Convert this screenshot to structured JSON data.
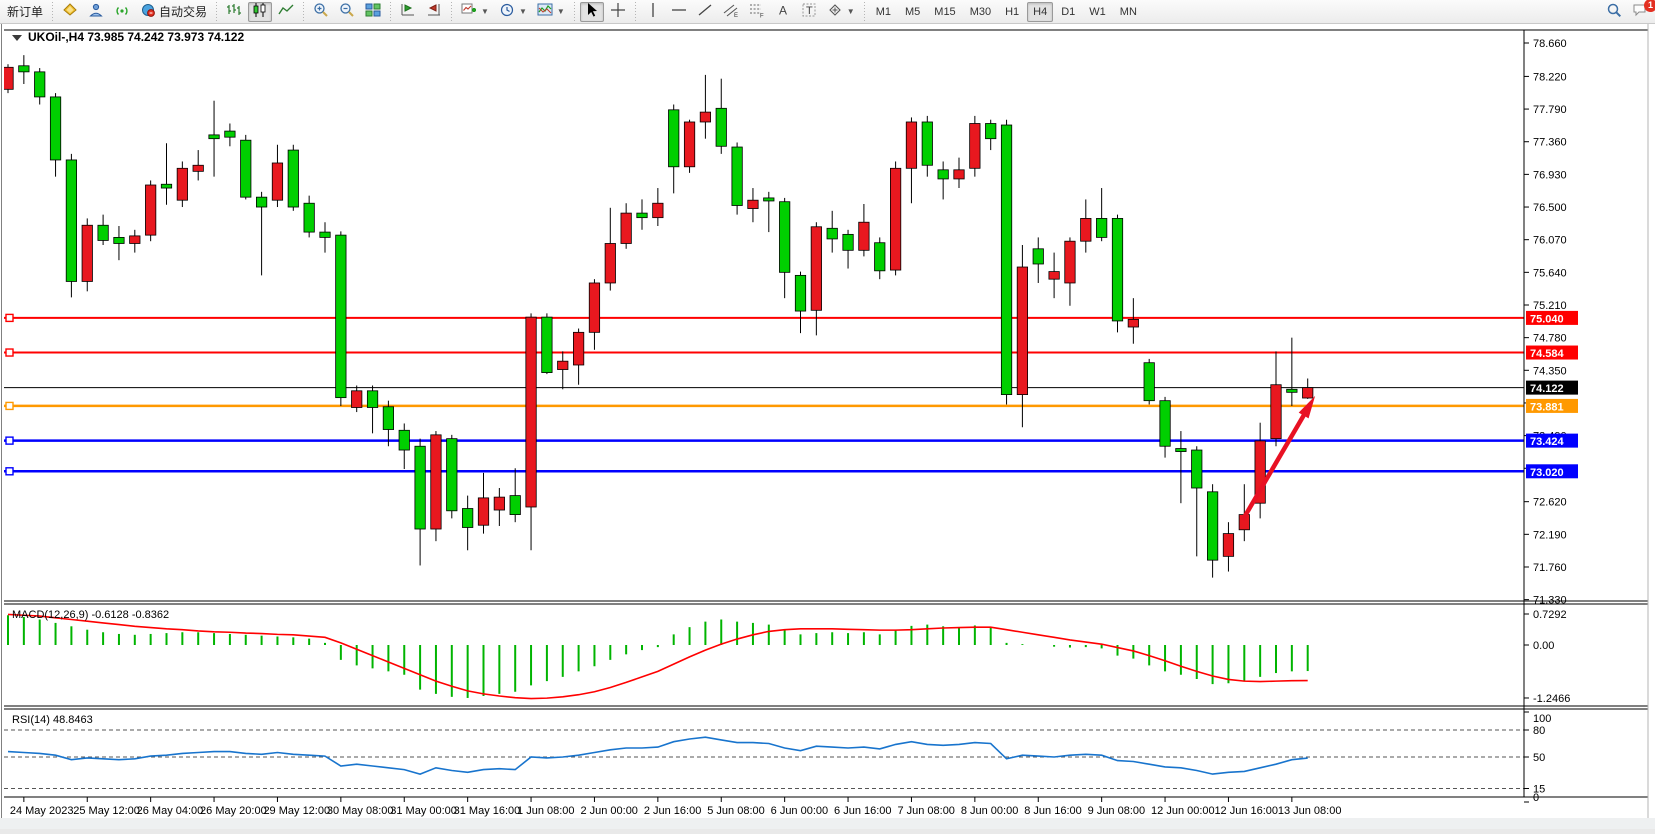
{
  "toolbar": {
    "new_order_label": "新订单",
    "autotrading_label": "自动交易",
    "items": [
      {
        "name": "new-order-button",
        "icon": null,
        "label_key": "new_order_label"
      },
      {
        "sep": true
      },
      {
        "name": "funds-button",
        "icon": "coin"
      },
      {
        "name": "profile-button",
        "icon": "person"
      },
      {
        "name": "signal-button",
        "icon": "signal"
      },
      {
        "name": "autotrading-button",
        "icon": "robot",
        "label_key": "autotrading_label"
      },
      {
        "sep": true
      },
      {
        "name": "bar-chart-button",
        "icon": "bars"
      },
      {
        "name": "candlestick-button",
        "icon": "candles",
        "active": true
      },
      {
        "name": "line-chart-button",
        "icon": "linechart"
      },
      {
        "sep": true
      },
      {
        "name": "zoom-in-button",
        "icon": "zoomin"
      },
      {
        "name": "zoom-out-button",
        "icon": "zoomout"
      },
      {
        "name": "tile-windows-button",
        "icon": "tiles"
      },
      {
        "sep": true
      },
      {
        "name": "auto-scroll-button",
        "icon": "autoscroll"
      },
      {
        "name": "chart-shift-button",
        "icon": "chartshift"
      },
      {
        "sep": true
      },
      {
        "name": "new-chart-button",
        "icon": "newchart",
        "dropdown": true
      },
      {
        "name": "periods-button",
        "icon": "clock",
        "dropdown": true
      },
      {
        "name": "indicators-button",
        "icon": "indicator",
        "dropdown": true
      },
      {
        "sep": true
      },
      {
        "name": "cursor-button",
        "icon": "cursor",
        "active": true
      },
      {
        "name": "crosshair-button",
        "icon": "crosshair"
      },
      {
        "sep": true
      },
      {
        "name": "vertical-line-button",
        "icon": "vline"
      },
      {
        "name": "horizontal-line-button",
        "icon": "hline"
      },
      {
        "name": "trendline-button",
        "icon": "trendline"
      },
      {
        "name": "channel-button",
        "icon": "channel"
      },
      {
        "name": "fibonacci-button",
        "icon": "fibo"
      },
      {
        "name": "text-button",
        "icon": "textA"
      },
      {
        "name": "label-button",
        "icon": "textT"
      },
      {
        "name": "shapes-button",
        "icon": "shapes",
        "dropdown": true
      }
    ],
    "icon_glyphs": {
      "textA": "A",
      "textT": "T",
      "fiboF": "F",
      "channelE": "E"
    },
    "timeframes": [
      "M1",
      "M5",
      "M15",
      "M30",
      "H1",
      "H4",
      "D1",
      "W1",
      "MN"
    ],
    "active_timeframe": "H4",
    "search_icon": "magnifier",
    "notification_icon": "chat-bubble",
    "notification_badge": "1"
  },
  "chart": {
    "symbol_title": "UKOil-,H4",
    "ohlc_text": "73.985 74.242 73.973 74.122"
  },
  "chart_data": [
    {
      "type": "candlestick",
      "title": "UKOil-,H4",
      "open": 73.985,
      "high": 74.242,
      "low": 73.973,
      "close": 74.122,
      "ylim": [
        71.33,
        78.66
      ],
      "grid": false,
      "up_color": "#e8181f",
      "down_color": "#00cf00",
      "price_ticks": [
        "78.660",
        "78.220",
        "77.790",
        "77.360",
        "76.930",
        "76.500",
        "76.070",
        "75.640",
        "75.210",
        "74.780",
        "74.350",
        "73.920",
        "73.490",
        "73.060",
        "72.620",
        "72.190",
        "71.760",
        "71.330"
      ],
      "time_labels": [
        "24 May 2023",
        "25 May 12:00",
        "26 May 04:00",
        "26 May 20:00",
        "29 May 12:00",
        "30 May 08:00",
        "31 May 00:00",
        "31 May 16:00",
        "1 Jun 08:00",
        "2 Jun 00:00",
        "2 Jun 16:00",
        "5 Jun 08:00",
        "6 Jun 00:00",
        "6 Jun 16:00",
        "7 Jun 08:00",
        "8 Jun 00:00",
        "8 Jun 16:00",
        "9 Jun 08:00",
        "12 Jun 00:00",
        "12 Jun 16:00",
        "13 Jun 08:00"
      ],
      "candles": [
        [
          78.05,
          78.38,
          78.0,
          78.34
        ],
        [
          78.36,
          78.5,
          78.12,
          78.28
        ],
        [
          78.28,
          78.33,
          77.85,
          77.95
        ],
        [
          77.95,
          78.0,
          76.9,
          77.12
        ],
        [
          77.12,
          77.2,
          75.31,
          75.52
        ],
        [
          75.52,
          76.35,
          75.39,
          76.26
        ],
        [
          76.26,
          76.4,
          76.0,
          76.06
        ],
        [
          76.1,
          76.25,
          75.8,
          76.02
        ],
        [
          76.02,
          76.2,
          75.9,
          76.12
        ],
        [
          76.13,
          76.85,
          76.05,
          76.79
        ],
        [
          76.8,
          77.34,
          76.53,
          76.75
        ],
        [
          76.59,
          77.1,
          76.5,
          77.01
        ],
        [
          76.97,
          77.25,
          76.85,
          77.05
        ],
        [
          77.45,
          77.9,
          76.9,
          77.4
        ],
        [
          77.5,
          77.6,
          77.3,
          77.42
        ],
        [
          77.38,
          77.45,
          76.6,
          76.63
        ],
        [
          76.63,
          76.7,
          75.6,
          76.5
        ],
        [
          76.59,
          77.32,
          76.5,
          77.08
        ],
        [
          77.25,
          77.32,
          76.45,
          76.5
        ],
        [
          76.55,
          76.65,
          76.1,
          76.17
        ],
        [
          76.17,
          76.3,
          75.9,
          76.1
        ],
        [
          76.13,
          76.18,
          73.88,
          73.99
        ],
        [
          73.86,
          74.15,
          73.8,
          74.08
        ],
        [
          74.08,
          74.15,
          73.52,
          73.86
        ],
        [
          73.87,
          73.95,
          73.35,
          73.57
        ],
        [
          73.56,
          73.65,
          73.05,
          73.3
        ],
        [
          73.35,
          73.45,
          71.78,
          72.26
        ],
        [
          72.26,
          73.55,
          72.1,
          73.5
        ],
        [
          73.45,
          73.5,
          72.4,
          72.5
        ],
        [
          72.53,
          72.7,
          71.98,
          72.28
        ],
        [
          72.31,
          73.0,
          72.2,
          72.67
        ],
        [
          72.51,
          72.8,
          72.3,
          72.68
        ],
        [
          72.7,
          73.06,
          72.35,
          72.45
        ],
        [
          72.55,
          75.1,
          71.98,
          75.05
        ],
        [
          75.05,
          75.1,
          74.3,
          74.32
        ],
        [
          74.36,
          74.6,
          74.1,
          74.47
        ],
        [
          74.42,
          74.9,
          74.16,
          74.85
        ],
        [
          74.85,
          75.55,
          74.62,
          75.5
        ],
        [
          75.5,
          76.49,
          75.4,
          76.02
        ],
        [
          76.02,
          76.55,
          75.95,
          76.42
        ],
        [
          76.42,
          76.6,
          76.2,
          76.36
        ],
        [
          76.36,
          76.75,
          76.25,
          76.55
        ],
        [
          77.78,
          77.85,
          76.68,
          77.03
        ],
        [
          77.03,
          77.65,
          76.95,
          77.62
        ],
        [
          77.62,
          78.24,
          77.4,
          77.75
        ],
        [
          77.8,
          78.19,
          77.2,
          77.3
        ],
        [
          77.29,
          77.35,
          76.4,
          76.52
        ],
        [
          76.48,
          76.75,
          76.3,
          76.59
        ],
        [
          76.62,
          76.7,
          76.17,
          76.58
        ],
        [
          76.57,
          76.62,
          75.3,
          75.64
        ],
        [
          75.6,
          75.65,
          74.84,
          75.13
        ],
        [
          75.14,
          76.3,
          74.81,
          76.24
        ],
        [
          76.22,
          76.45,
          75.9,
          76.08
        ],
        [
          76.14,
          76.2,
          75.69,
          75.93
        ],
        [
          75.93,
          76.54,
          75.85,
          76.3
        ],
        [
          76.03,
          76.1,
          75.55,
          75.66
        ],
        [
          75.67,
          77.1,
          75.6,
          77.01
        ],
        [
          77.01,
          77.68,
          76.55,
          77.62
        ],
        [
          77.62,
          77.7,
          76.9,
          77.05
        ],
        [
          76.99,
          77.1,
          76.6,
          76.87
        ],
        [
          76.87,
          77.15,
          76.75,
          76.99
        ],
        [
          77.01,
          77.7,
          76.9,
          77.6
        ],
        [
          77.6,
          77.65,
          77.25,
          77.4
        ],
        [
          77.58,
          77.65,
          73.9,
          74.03
        ],
        [
          74.03,
          76.0,
          73.6,
          75.71
        ],
        [
          75.95,
          76.1,
          75.5,
          75.75
        ],
        [
          75.55,
          75.9,
          75.3,
          75.65
        ],
        [
          75.5,
          76.1,
          75.2,
          76.05
        ],
        [
          76.05,
          76.6,
          75.9,
          76.35
        ],
        [
          76.35,
          76.75,
          76.05,
          76.1
        ],
        [
          76.35,
          76.4,
          74.85,
          75.0
        ],
        [
          74.92,
          75.3,
          74.7,
          75.02
        ],
        [
          74.45,
          74.5,
          73.9,
          73.95
        ],
        [
          73.95,
          74.0,
          73.2,
          73.35
        ],
        [
          73.32,
          73.55,
          72.6,
          73.28
        ],
        [
          73.3,
          73.35,
          71.9,
          72.8
        ],
        [
          72.75,
          72.85,
          71.62,
          71.85
        ],
        [
          71.9,
          72.35,
          71.7,
          72.2
        ],
        [
          72.25,
          72.85,
          72.1,
          72.45
        ],
        [
          72.6,
          73.66,
          72.4,
          73.42
        ],
        [
          73.45,
          74.6,
          73.35,
          74.16
        ],
        [
          74.1,
          74.78,
          73.88,
          74.06
        ],
        [
          73.985,
          74.242,
          73.973,
          74.122
        ]
      ],
      "hlines": [
        {
          "price": 75.04,
          "label": "75.040",
          "color": "#ff0000",
          "width": 2,
          "handle": true
        },
        {
          "price": 74.584,
          "label": "74.584",
          "color": "#ff0000",
          "width": 2,
          "handle": true
        },
        {
          "price": 74.122,
          "label": "74.122",
          "color": "#000000",
          "width": 1,
          "handle": false,
          "current": true
        },
        {
          "price": 73.881,
          "label": "73.881",
          "color": "#ff9900",
          "width": 2.5,
          "handle": true
        },
        {
          "price": 73.424,
          "label": "73.424",
          "color": "#0000ff",
          "width": 2.5,
          "handle": true
        },
        {
          "price": 73.02,
          "label": "73.020",
          "color": "#0000ff",
          "width": 2.5,
          "handle": true
        }
      ],
      "arrow": {
        "from": {
          "bar": 77.9,
          "price": 72.38
        },
        "to": {
          "bar": 82.15,
          "price": 73.9
        },
        "color": "#e81123"
      }
    },
    {
      "type": "bar",
      "title": "MACD(12,26,9)",
      "values_text": "-0.6128 -0.8362",
      "main_value": -0.6128,
      "signal_value": -0.8362,
      "axis_labels": [
        "0.7292",
        "0.00",
        "-1.2466"
      ],
      "axis_values": [
        0.7292,
        0,
        -1.2466
      ],
      "hist_color": "#00b400",
      "signal_color": "#ff0000",
      "hist": [
        0.7,
        0.66,
        0.6,
        0.52,
        0.44,
        0.36,
        0.3,
        0.26,
        0.24,
        0.26,
        0.28,
        0.3,
        0.3,
        0.28,
        0.26,
        0.24,
        0.22,
        0.2,
        0.18,
        0.15,
        0.05,
        -0.35,
        -0.48,
        -0.55,
        -0.62,
        -0.7,
        -1.05,
        -1.15,
        -1.22,
        -1.246,
        -1.2,
        -1.15,
        -1.1,
        -0.95,
        -0.85,
        -0.75,
        -0.62,
        -0.5,
        -0.35,
        -0.22,
        -0.12,
        -0.05,
        0.25,
        0.42,
        0.55,
        0.6,
        0.55,
        0.52,
        0.48,
        0.36,
        0.25,
        0.28,
        0.3,
        0.28,
        0.3,
        0.25,
        0.35,
        0.45,
        0.48,
        0.44,
        0.42,
        0.46,
        0.42,
        0.05,
        0.02,
        0.0,
        -0.04,
        -0.06,
        -0.05,
        -0.08,
        -0.25,
        -0.32,
        -0.48,
        -0.62,
        -0.7,
        -0.8,
        -0.92,
        -0.9,
        -0.85,
        -0.75,
        -0.66,
        -0.62,
        -0.6128
      ],
      "signal": [
        0.72,
        0.7,
        0.68,
        0.64,
        0.6,
        0.56,
        0.52,
        0.48,
        0.44,
        0.41,
        0.38,
        0.36,
        0.33,
        0.31,
        0.3,
        0.28,
        0.27,
        0.25,
        0.24,
        0.21,
        0.18,
        0.05,
        -0.1,
        -0.25,
        -0.4,
        -0.55,
        -0.7,
        -0.85,
        -0.97,
        -1.08,
        -1.15,
        -1.2,
        -1.24,
        -1.26,
        -1.25,
        -1.22,
        -1.17,
        -1.1,
        -1.0,
        -0.88,
        -0.75,
        -0.62,
        -0.45,
        -0.28,
        -0.12,
        0.02,
        0.14,
        0.24,
        0.32,
        0.36,
        0.38,
        0.38,
        0.38,
        0.37,
        0.36,
        0.35,
        0.35,
        0.36,
        0.38,
        0.4,
        0.41,
        0.42,
        0.42,
        0.36,
        0.3,
        0.24,
        0.18,
        0.12,
        0.07,
        0.02,
        -0.06,
        -0.14,
        -0.25,
        -0.37,
        -0.5,
        -0.62,
        -0.73,
        -0.81,
        -0.85,
        -0.86,
        -0.85,
        -0.84,
        -0.8362
      ]
    },
    {
      "type": "line",
      "title": "RSI(14)",
      "values_text": "48.8463",
      "current_value": 48.8463,
      "axis_labels": [
        "100",
        "80",
        "50",
        "15",
        "0"
      ],
      "levels": [
        80,
        50,
        15
      ],
      "line_color": "#1874cd",
      "values": [
        56,
        55,
        54,
        52,
        47,
        49,
        48,
        47,
        48,
        51,
        52,
        54,
        55,
        56,
        56,
        54,
        53,
        55,
        53,
        52,
        51,
        40,
        42,
        40,
        38,
        36,
        31,
        38,
        35,
        33,
        36,
        37,
        36,
        50,
        49,
        50,
        52,
        55,
        58,
        60,
        60,
        61,
        67,
        70,
        72,
        69,
        66,
        66,
        65,
        60,
        57,
        62,
        61,
        60,
        61,
        59,
        64,
        67,
        64,
        63,
        64,
        66,
        65,
        48,
        52,
        51,
        50,
        52,
        53,
        52,
        46,
        45,
        42,
        39,
        38,
        35,
        31,
        33,
        34,
        38,
        42,
        47,
        48.85
      ]
    }
  ]
}
